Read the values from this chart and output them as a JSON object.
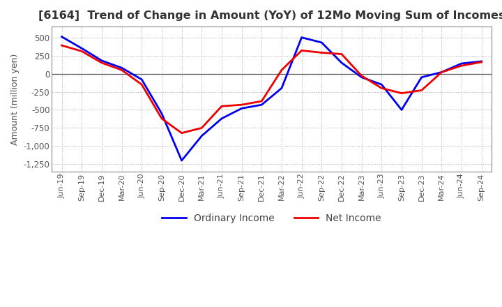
{
  "title": "[6164]  Trend of Change in Amount (YoY) of 12Mo Moving Sum of Incomes",
  "ylabel": "Amount (million yen)",
  "background_color": "#ffffff",
  "plot_bg_color": "#ffffff",
  "grid_color": "#aaaaaa",
  "ordinary_income_color": "#0000ee",
  "net_income_color": "#ee0000",
  "ordinary_income_label": "Ordinary Income",
  "net_income_label": "Net Income",
  "x_labels": [
    "Jun-19",
    "Sep-19",
    "Dec-19",
    "Mar-20",
    "Jun-20",
    "Sep-20",
    "Dec-20",
    "Mar-21",
    "Jun-21",
    "Sep-21",
    "Dec-21",
    "Mar-22",
    "Jun-22",
    "Sep-22",
    "Dec-22",
    "Mar-23",
    "Jun-23",
    "Sep-23",
    "Dec-23",
    "Mar-24",
    "Jun-24",
    "Sep-24"
  ],
  "ordinary_income": [
    510,
    350,
    180,
    80,
    -80,
    -550,
    -1200,
    -860,
    -620,
    -480,
    -430,
    -200,
    500,
    430,
    150,
    -50,
    -150,
    -500,
    -50,
    20,
    140,
    170
  ],
  "net_income": [
    390,
    310,
    150,
    50,
    -150,
    -620,
    -820,
    -750,
    -450,
    -430,
    -380,
    50,
    320,
    290,
    270,
    -30,
    -200,
    -270,
    -230,
    20,
    110,
    160
  ],
  "ylim": [
    -1350,
    650
  ],
  "yticks": [
    500,
    250,
    0,
    -250,
    -500,
    -750,
    -1000,
    -1250
  ]
}
